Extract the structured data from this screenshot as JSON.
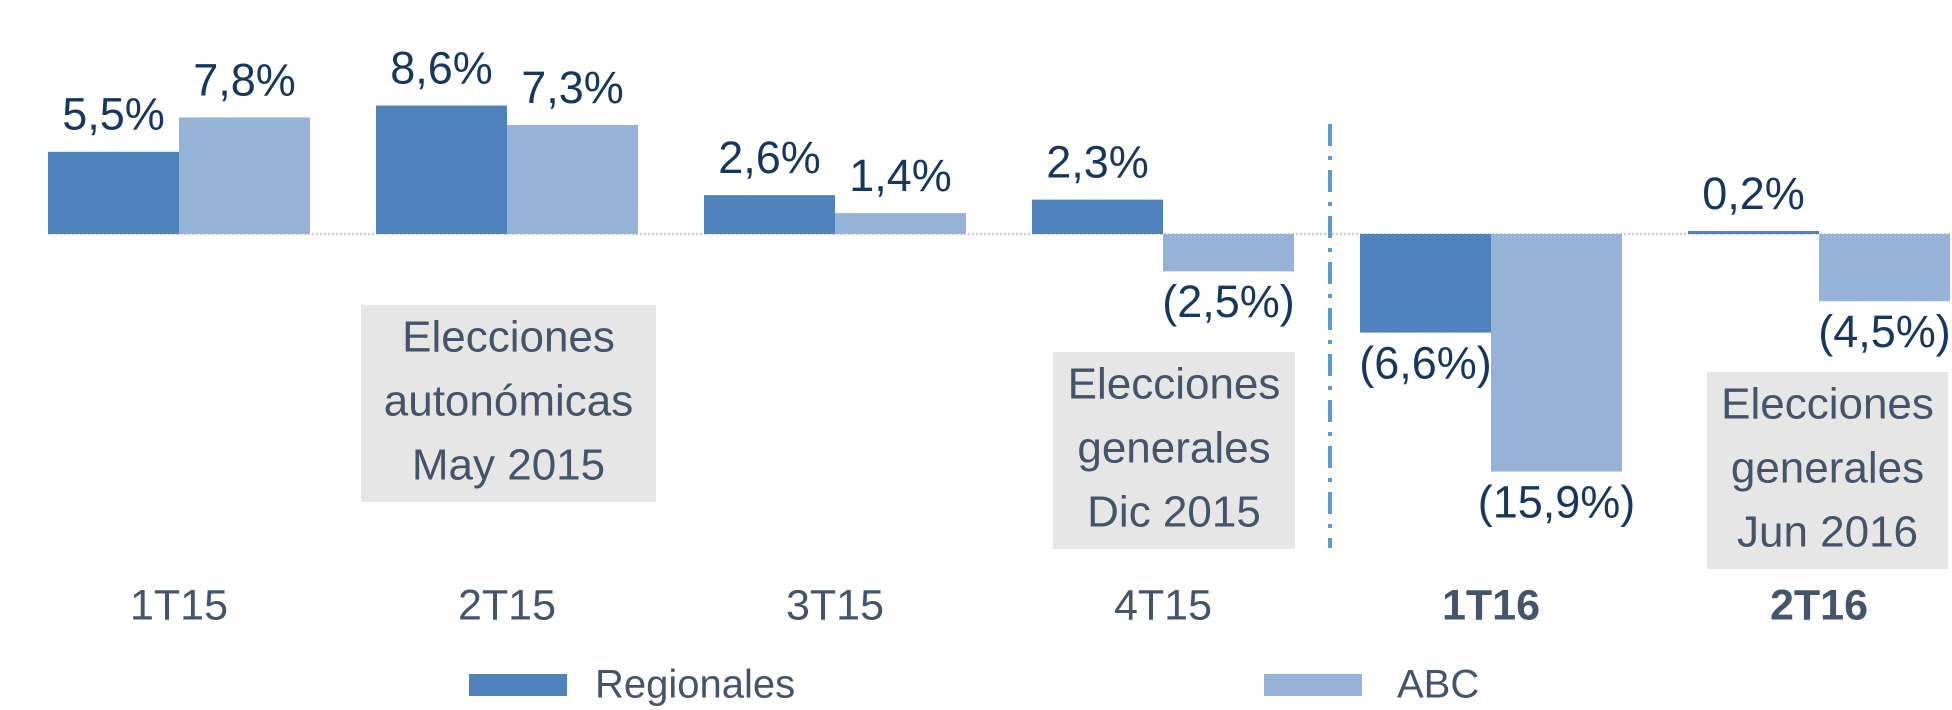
{
  "chart_data": {
    "type": "bar",
    "categories": [
      "1T15",
      "2T15",
      "3T15",
      "4T15",
      "1T16",
      "2T16"
    ],
    "series": [
      {
        "name": "Regionales",
        "color": "#4f81bd",
        "values": [
          5.5,
          8.6,
          2.6,
          2.3,
          -6.6,
          0.2
        ],
        "value_labels": [
          "5,5%",
          "8,6%",
          "2,6%",
          "2,3%",
          "(6,6%)",
          "0,2%"
        ]
      },
      {
        "name": "ABC",
        "color": "#95b3d7",
        "values": [
          7.8,
          7.3,
          1.4,
          -2.5,
          -15.9,
          -4.5
        ],
        "value_labels": [
          "7,8%",
          "7,3%",
          "1,4%",
          "(2,5%)",
          "(15,9%)",
          "(4,5%)"
        ]
      }
    ],
    "annotations": [
      {
        "lines": [
          "Elecciones",
          "autonómicas",
          "May 2015"
        ]
      },
      {
        "lines": [
          "Elecciones",
          "generales",
          "Dic 2015"
        ]
      },
      {
        "lines": [
          "Elecciones",
          "generales",
          "Jun 2016"
        ]
      }
    ]
  }
}
